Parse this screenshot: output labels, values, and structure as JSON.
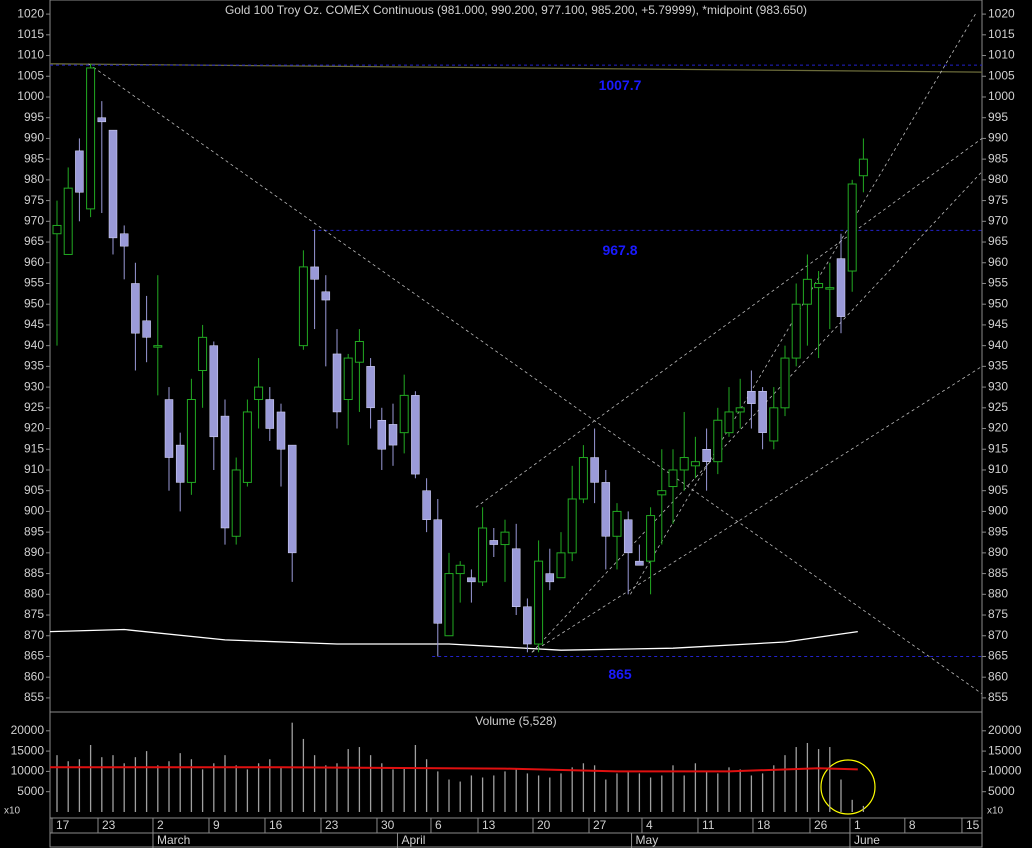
{
  "chart_data": [
    {
      "type": "candlestick",
      "title": "Gold 100 Troy Oz. COMEX Continuous (981.000, 990.200, 977.100, 985.200, +5.79999), *midpoint (983.650)",
      "xlim": [
        -0.625,
        82.59
      ],
      "ylim": [
        851.6,
        1023.4
      ],
      "yticks": [
        855,
        860,
        865,
        870,
        875,
        880,
        885,
        890,
        895,
        900,
        905,
        910,
        915,
        920,
        925,
        930,
        935,
        940,
        945,
        950,
        955,
        960,
        965,
        970,
        975,
        980,
        985,
        990,
        995,
        1000,
        1005,
        1010,
        1015,
        1020
      ],
      "up_color": "#22aa22",
      "down_color": "#9a9ad8",
      "open": [
        967,
        962,
        987,
        973,
        995,
        992,
        967,
        955,
        946,
        940,
        927,
        916,
        907,
        934,
        940,
        923,
        894,
        907,
        927,
        927,
        924,
        916,
        940,
        959,
        953,
        938,
        927,
        936,
        935,
        922,
        921,
        919,
        928,
        905,
        898,
        870,
        885,
        884,
        883,
        893,
        892,
        891,
        877,
        868,
        885,
        884,
        890,
        903,
        913,
        907,
        894,
        898,
        888,
        888,
        904,
        906,
        910,
        911,
        915,
        912,
        919,
        924,
        929,
        929,
        917,
        925,
        937,
        950,
        954,
        954,
        961,
        958,
        981
      ],
      "high": [
        975,
        983,
        990,
        1008,
        999,
        992,
        969,
        960,
        952,
        957,
        930,
        919,
        932,
        945,
        941,
        927,
        913,
        927,
        937,
        930,
        926,
        916,
        963,
        968,
        957,
        944,
        938,
        944,
        937,
        925,
        926,
        933,
        929,
        908,
        903,
        890,
        888,
        886,
        901,
        896,
        898,
        897,
        879,
        893,
        891,
        895,
        911,
        916,
        920,
        910,
        902,
        900,
        892,
        901,
        915,
        915,
        924,
        918,
        920,
        925,
        930,
        932,
        934,
        930,
        930,
        940,
        955,
        962,
        958,
        960,
        967,
        980,
        990
      ],
      "low": [
        940,
        962,
        970,
        971,
        972,
        962,
        956,
        934,
        936,
        928,
        905,
        900,
        904,
        925,
        910,
        892,
        892,
        906,
        920,
        917,
        906,
        883,
        939,
        944,
        935,
        920,
        916,
        924,
        920,
        910,
        911,
        914,
        908,
        895,
        865,
        870,
        878,
        878,
        882,
        889,
        883,
        875,
        866,
        866,
        881,
        884,
        888,
        902,
        902,
        886,
        886,
        880,
        887,
        880,
        892,
        897,
        905,
        908,
        905,
        909,
        918,
        920,
        920,
        915,
        915,
        923,
        935,
        940,
        937,
        944,
        943,
        953,
        977
      ],
      "close": [
        969,
        978,
        977,
        1007,
        994,
        966,
        964,
        943,
        942,
        940,
        913,
        907,
        927,
        942,
        918,
        896,
        910,
        924,
        930,
        920,
        915,
        890,
        959,
        956,
        951,
        924,
        937,
        941,
        925,
        915,
        916,
        928,
        909,
        898,
        873,
        885,
        887,
        883,
        896,
        892,
        895,
        877,
        868,
        888,
        883,
        890,
        903,
        913,
        907,
        894,
        900,
        890,
        887,
        899,
        905,
        910,
        913,
        912,
        912,
        922,
        924,
        925,
        926,
        919,
        925,
        937,
        950,
        956,
        955,
        954,
        947,
        979,
        985
      ],
      "lines": [
        {
          "color": "#ffffff",
          "x": [
            -0.625,
            6,
            15,
            25,
            35,
            45,
            55,
            65,
            71.5
          ],
          "y": [
            871,
            871.5,
            869,
            868,
            868,
            866.5,
            867,
            868.5,
            871
          ]
        },
        {
          "color": "#6b6b3a",
          "x": [
            -0.625,
            82.59
          ],
          "y": [
            1008,
            1006
          ]
        }
      ],
      "trendlines": [
        {
          "x": [
            2.8,
            82.59
          ],
          "y": [
            1008,
            856
          ]
        },
        {
          "x": [
            37.4,
            82.59
          ],
          "y": [
            901,
            990
          ]
        },
        {
          "x": [
            51.2,
            82.0
          ],
          "y": [
            880,
            1020
          ]
        },
        {
          "x": [
            42.4,
            82.59
          ],
          "y": [
            866,
            982
          ]
        },
        {
          "x": [
            42.4,
            82.59
          ],
          "y": [
            866,
            935
          ]
        }
      ],
      "levels": [
        {
          "value": 1007.7,
          "start": -0.625
        },
        {
          "value": 967.8,
          "start": 22.8
        },
        {
          "value": 865,
          "start": 33.5
        }
      ]
    },
    {
      "type": "bar",
      "title": "Volume (5,528)",
      "unit": "x10",
      "color": "#a0a0a0",
      "xlim": [
        -0.625,
        82.59
      ],
      "ylim": [
        -1478,
        24138
      ],
      "yticks": [
        5000,
        10000,
        15000,
        20000
      ],
      "values": [
        14000,
        12500,
        13000,
        16500,
        13500,
        14000,
        12000,
        13500,
        15000,
        11500,
        12500,
        14500,
        13000,
        10500,
        12000,
        14000,
        11500,
        10500,
        12000,
        13000,
        11000,
        22000,
        18000,
        14000,
        11500,
        12000,
        15500,
        16000,
        14000,
        12000,
        10500,
        11000,
        16500,
        13000,
        10000,
        8000,
        7500,
        9000,
        8500,
        9000,
        10000,
        10500,
        9500,
        9000,
        8500,
        9500,
        11000,
        12000,
        11500,
        8000,
        9500,
        10000,
        9500,
        8500,
        9000,
        11500,
        9000,
        12000,
        10000,
        9500,
        11000,
        10500,
        9000,
        9500,
        11500,
        14000,
        16000,
        17000,
        15500,
        16000,
        8000,
        3000,
        1500
      ],
      "average": {
        "color": "#e01010",
        "x": [
          -0.625,
          20,
          40,
          50,
          60,
          68,
          71.5
        ],
        "y": [
          11000,
          11000,
          10700,
          10000,
          10000,
          10800,
          10500
        ]
      },
      "xticks": [
        {
          "value": -0.45,
          "label": "17"
        },
        {
          "value": 3.66,
          "label": "23"
        },
        {
          "value": 8.57,
          "label": "2"
        },
        {
          "value": 13.57,
          "label": "9"
        },
        {
          "value": 18.57,
          "label": "16"
        },
        {
          "value": 23.57,
          "label": "23"
        },
        {
          "value": 28.57,
          "label": "30"
        },
        {
          "value": 33.39,
          "label": "6"
        },
        {
          "value": 37.59,
          "label": "13"
        },
        {
          "value": 42.5,
          "label": "20"
        },
        {
          "value": 47.5,
          "label": "27"
        },
        {
          "value": 52.23,
          "label": "4"
        },
        {
          "value": 57.23,
          "label": "11"
        },
        {
          "value": 62.14,
          "label": "18"
        },
        {
          "value": 67.23,
          "label": "26"
        },
        {
          "value": 70.8,
          "label": "1"
        },
        {
          "value": 75.7,
          "label": "8"
        },
        {
          "value": 80.8,
          "label": "15"
        }
      ],
      "months": [
        {
          "value": 8.57,
          "label": "March"
        },
        {
          "value": 30.4,
          "label": "April"
        },
        {
          "value": 51.3,
          "label": "May"
        },
        {
          "value": 70.8,
          "label": "June"
        }
      ]
    }
  ]
}
